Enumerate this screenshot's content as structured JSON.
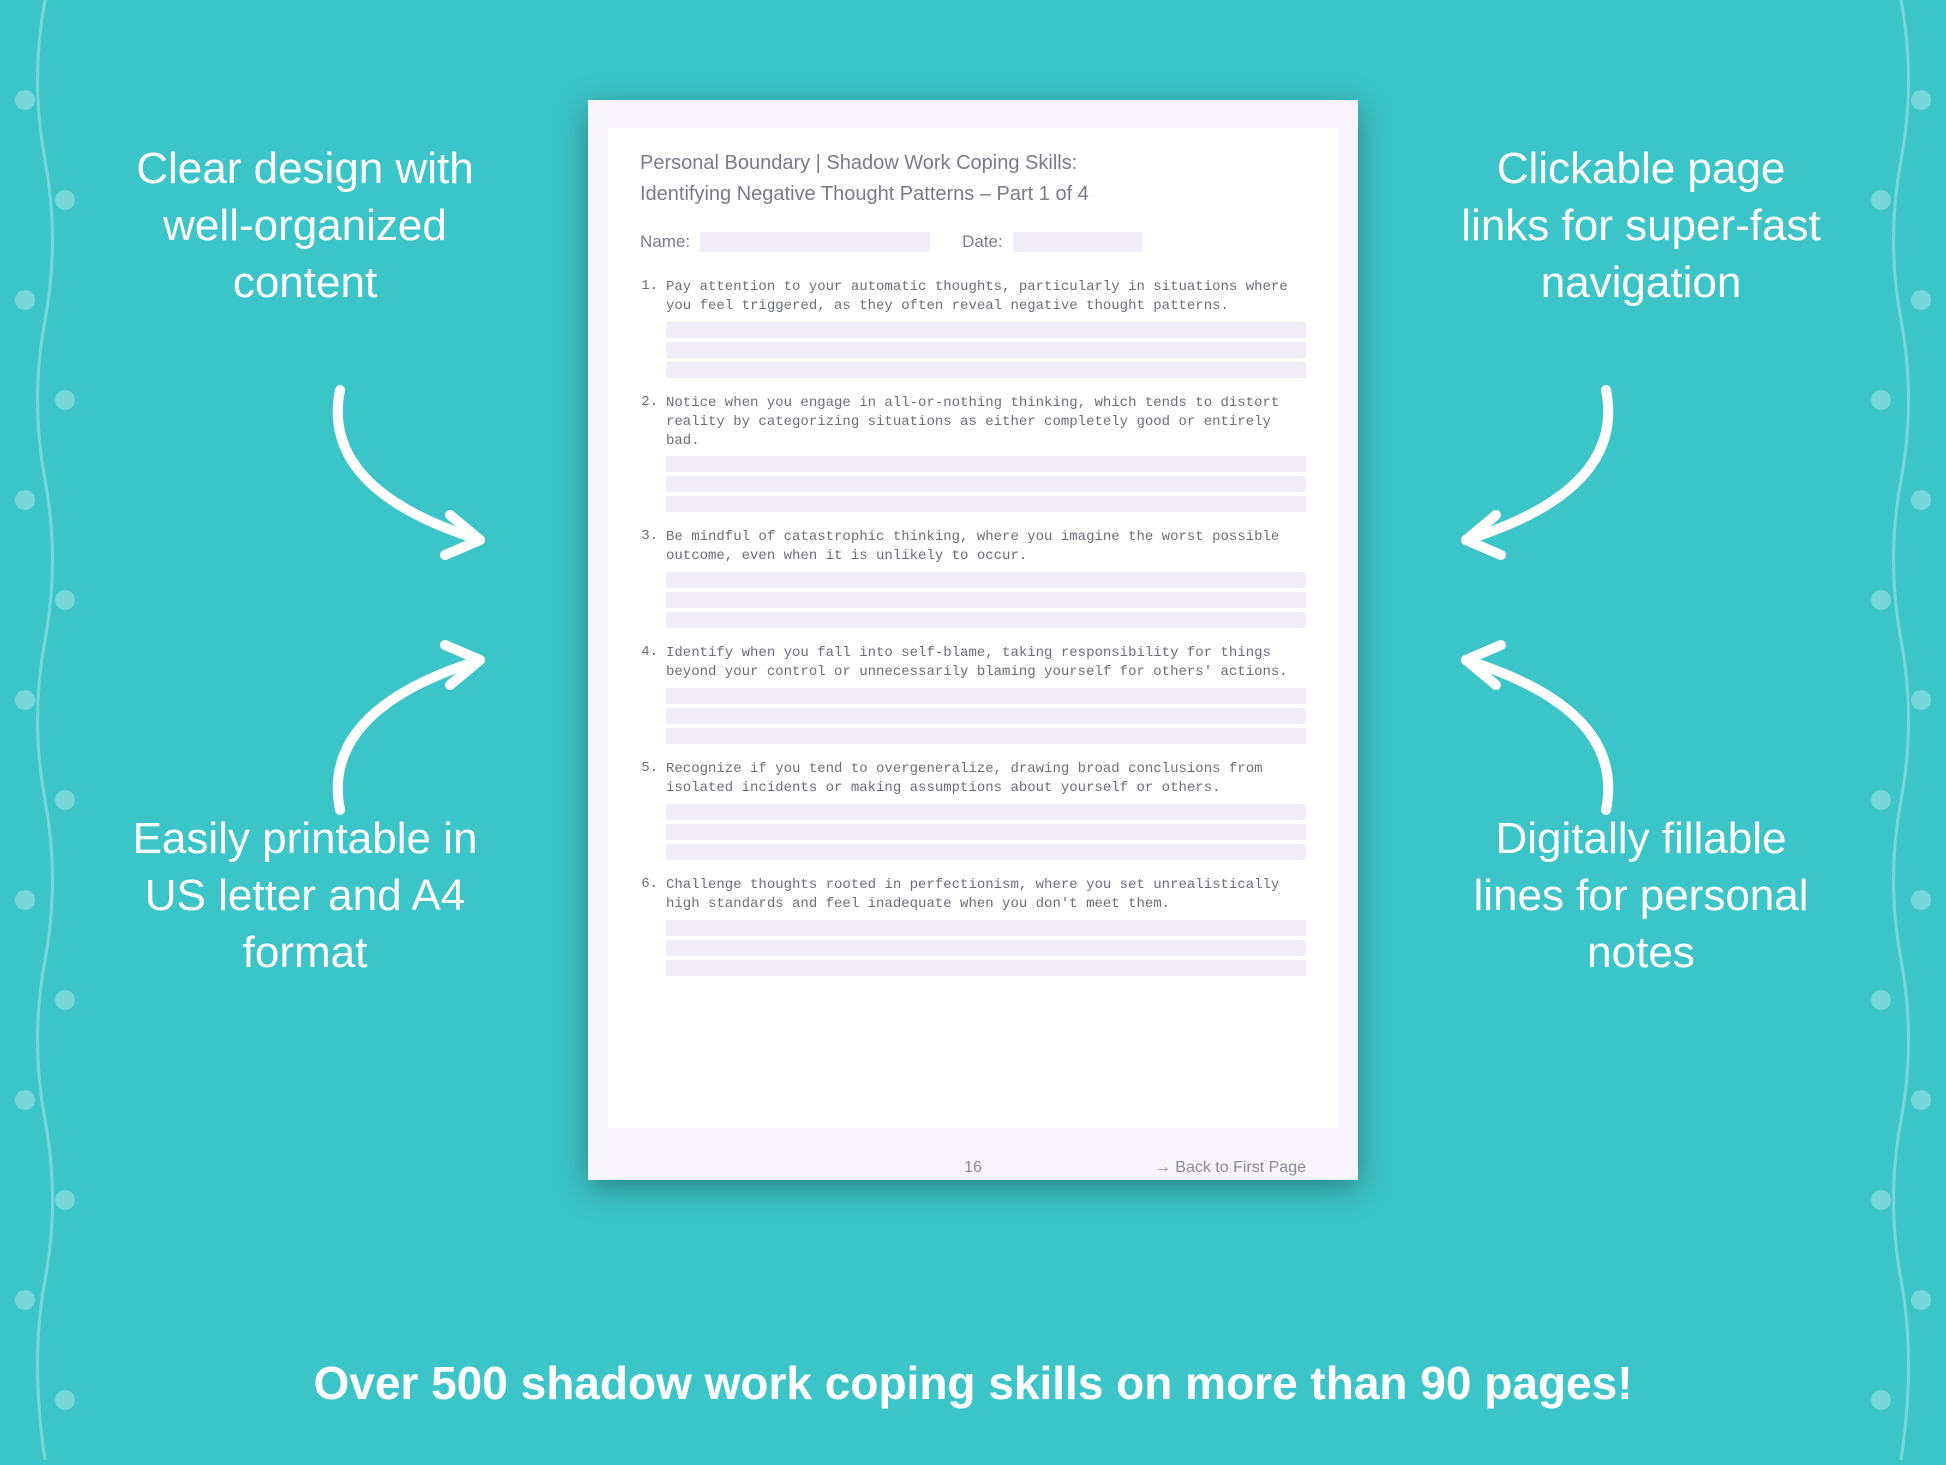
{
  "background_color": "#3cc5c9",
  "page_bg_outer": "#f7f4fb",
  "page_bg_inner": "#ffffff",
  "field_bg": "#f0edf8",
  "text_muted": "#7a7a88",
  "mono_text": "#6d6d7a",
  "callout_color": "#ffffff",
  "callouts": {
    "tl": "Clear design with well-organized content",
    "tr": "Clickable page links for super-fast navigation",
    "bl": "Easily printable in US letter and A4 format",
    "br": "Digitally fillable lines for personal notes"
  },
  "callout_fontsize": 44,
  "footer": "Over 500 shadow work coping skills on more than 90 pages!",
  "footer_fontsize": 46,
  "page": {
    "header_line1": "Personal Boundary | Shadow Work Coping Skills:",
    "header_line2": "Identifying Negative Thought Patterns  – Part 1 of 4",
    "name_label": "Name:",
    "date_label": "Date:",
    "items": [
      {
        "num": "1.",
        "text": "Pay attention to your automatic thoughts, particularly in situations where you feel triggered, as they often reveal negative thought patterns."
      },
      {
        "num": "2.",
        "text": "Notice when you engage in all-or-nothing thinking, which tends to distort reality by categorizing situations as either completely good or entirely bad."
      },
      {
        "num": "3.",
        "text": "Be mindful of catastrophic thinking, where you imagine the worst possible outcome, even when it is unlikely to occur."
      },
      {
        "num": "4.",
        "text": "Identify when you fall into self-blame, taking responsibility for things beyond your control or unnecessarily blaming yourself for others' actions."
      },
      {
        "num": "5.",
        "text": "Recognize if you tend to overgeneralize, drawing broad conclusions from isolated incidents or making assumptions about yourself or others."
      },
      {
        "num": "6.",
        "text": "Challenge thoughts rooted in perfectionism, where you set unrealistically high standards and feel inadequate when you don't meet them."
      }
    ],
    "lines_per_item": 3,
    "page_number": "16",
    "back_link": "→ Back to First Page"
  },
  "arrow_stroke": "#ffffff",
  "arrow_stroke_width": 10
}
